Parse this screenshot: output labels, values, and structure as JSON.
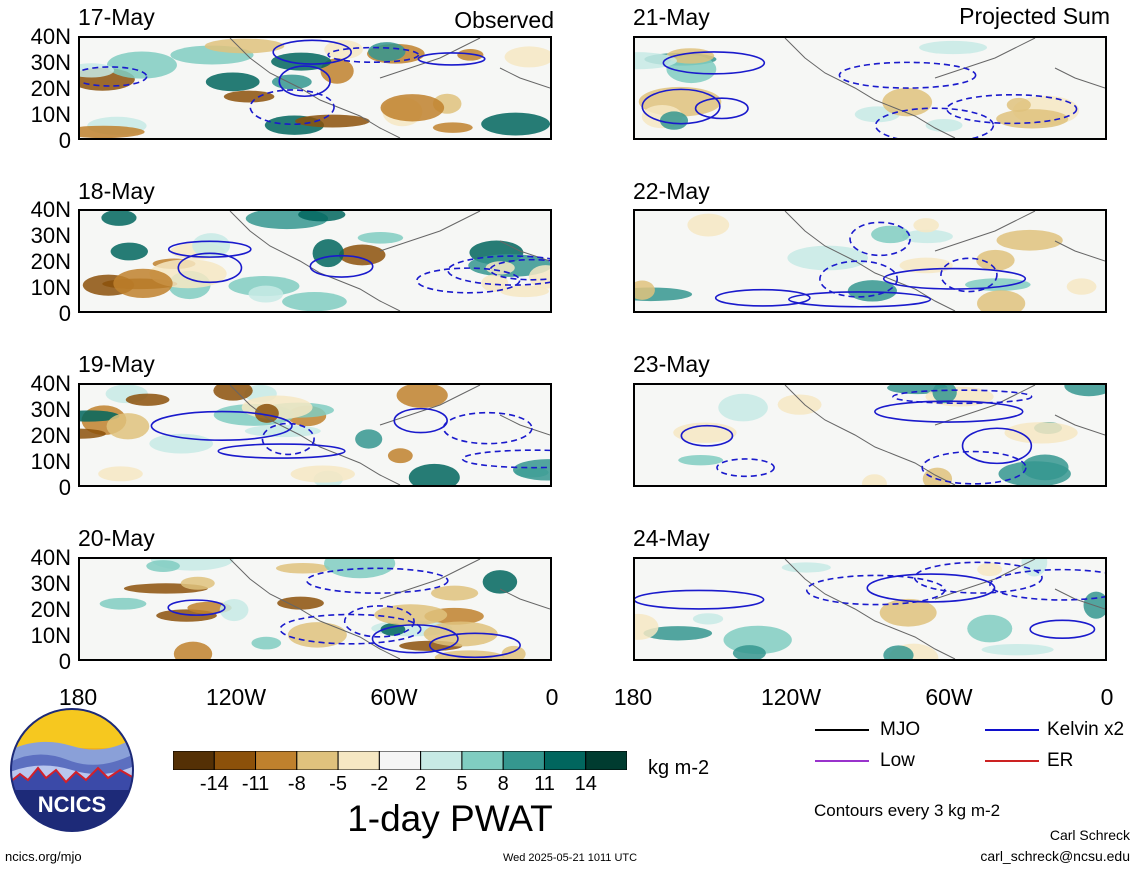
{
  "observed_title": "Observed",
  "projected_title": "Projected Sum",
  "panels_left": [
    {
      "date": "17-May"
    },
    {
      "date": "18-May"
    },
    {
      "date": "19-May"
    },
    {
      "date": "20-May"
    }
  ],
  "panels_right": [
    {
      "date": "21-May"
    },
    {
      "date": "22-May"
    },
    {
      "date": "23-May"
    },
    {
      "date": "24-May"
    }
  ],
  "lat_labels": [
    "40N",
    "30N",
    "20N",
    "10N",
    "0"
  ],
  "lon_labels": [
    "180",
    "120W",
    "60W",
    "0"
  ],
  "colorbar": {
    "labels": [
      "-14",
      "-11",
      "-8",
      "-5",
      "-2",
      "2",
      "5",
      "8",
      "11",
      "14"
    ],
    "colors": [
      "#543005",
      "#8c510a",
      "#bf812d",
      "#dfc27d",
      "#f6e8c3",
      "#f5f5f5",
      "#c7eae5",
      "#80cdc1",
      "#35978f",
      "#01665e",
      "#003c30"
    ],
    "units": "kg m-2",
    "title": "1-day PWAT"
  },
  "legend": {
    "mjo": {
      "label": "MJO",
      "color": "#000000"
    },
    "kelvin": {
      "label": "Kelvin x2",
      "color": "#1010cc"
    },
    "low": {
      "label": "Low",
      "color": "#9933cc"
    },
    "er": {
      "label": "ER",
      "color": "#cc2222"
    }
  },
  "contour_note": "Contours every 3 kg m-2",
  "logo_text": "NCICS",
  "footer": {
    "url": "ncics.org/mjo",
    "timestamp": "Wed 2025-05-21 1011 UTC",
    "author": "Carl Schreck",
    "email": "carl_schreck@ncsu.edu"
  }
}
